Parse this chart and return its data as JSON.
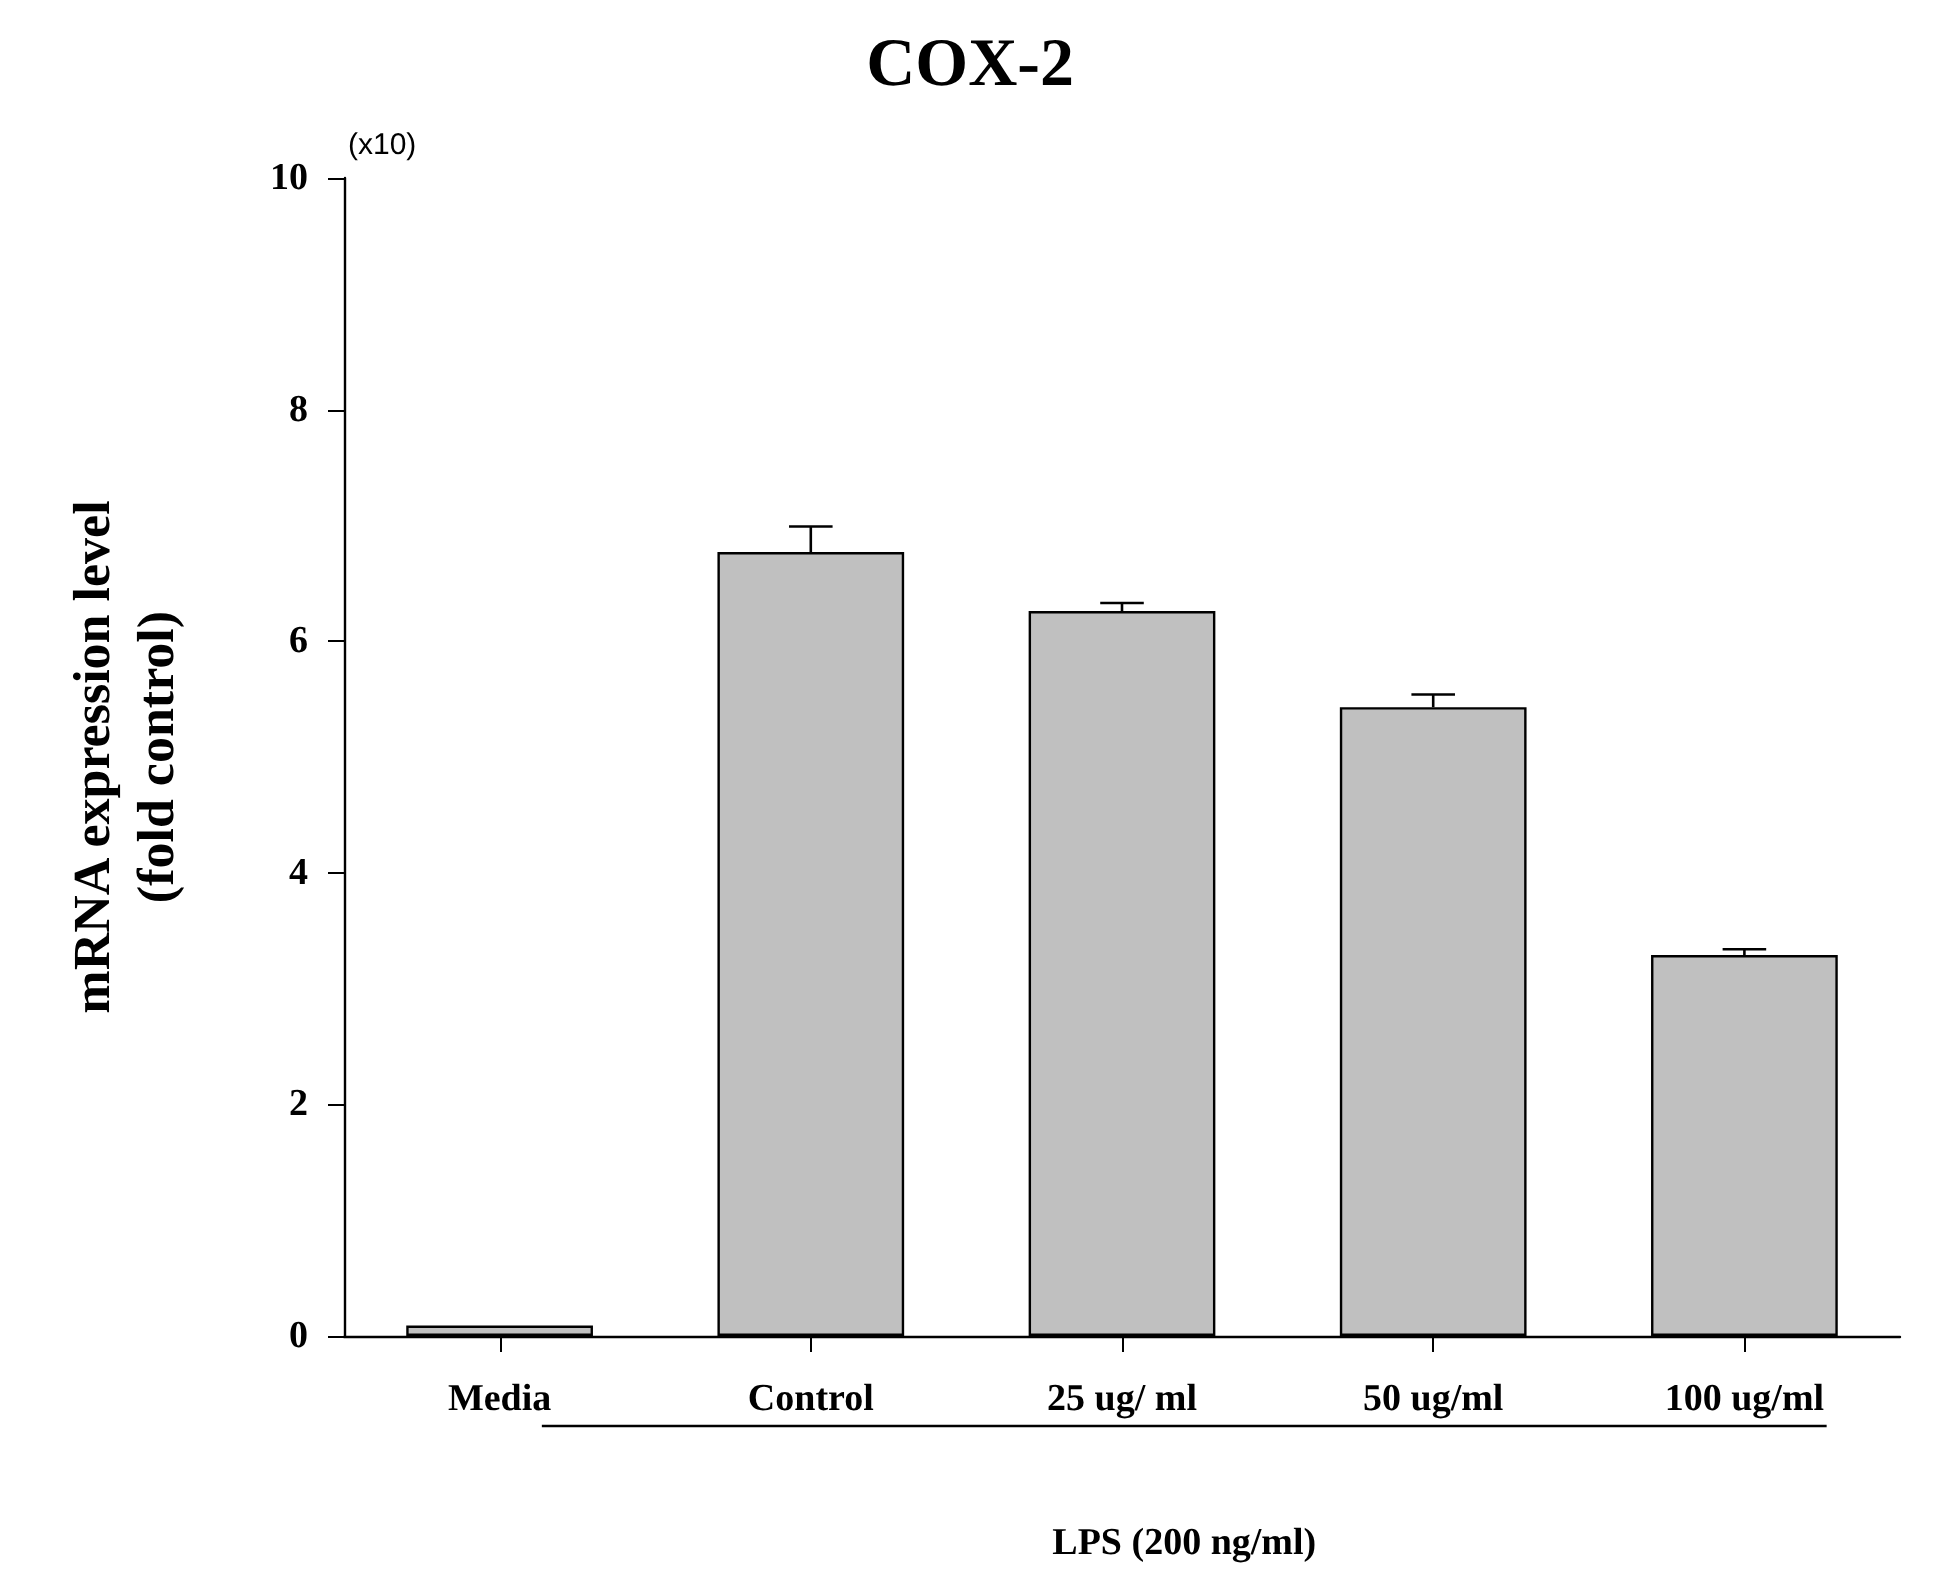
{
  "chart_data": {
    "type": "bar",
    "title": "COX-2",
    "ylabel": "mRNA expression level\n(fold control)",
    "categories": [
      "Media",
      "Control",
      "25 ug/ ml",
      "50 ug/ml",
      "100 ug/ml"
    ],
    "values": [
      0.09,
      6.77,
      6.26,
      5.43,
      3.29
    ],
    "errors": [
      null,
      0.22,
      0.07,
      0.11,
      0.05
    ],
    "color": "#c0c0c0",
    "ylim": [
      0,
      10
    ],
    "yticks": [
      0,
      2,
      4,
      6,
      8,
      10
    ],
    "grid": false,
    "annotations": [
      "(x10)",
      "LPS (200 ng/ml)"
    ]
  }
}
